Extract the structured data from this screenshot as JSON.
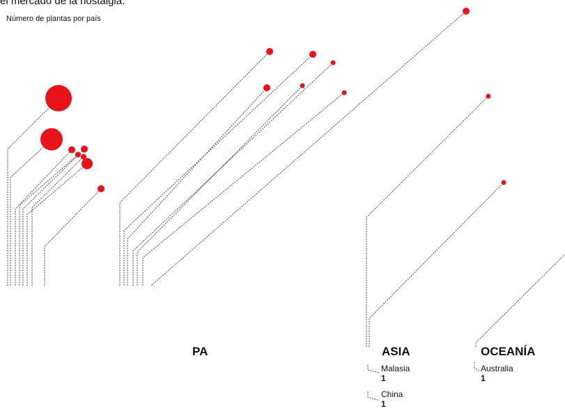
{
  "header": {
    "title": "el mercado de la nostalgia.",
    "subtitle": "Número de plantas por país"
  },
  "chart_data": {
    "type": "flow",
    "regions": [
      {
        "name": "PA",
        "countries": []
      },
      {
        "name": "ASIA",
        "countries": [
          {
            "name": "Malasia",
            "value": 1
          },
          {
            "name": "China",
            "value": 1
          }
        ]
      },
      {
        "name": "OCEANÍA",
        "countries": [
          {
            "name": "Australia",
            "value": 1
          }
        ]
      }
    ]
  },
  "colors": {
    "dot": "#e8141a",
    "line": "#3c4858",
    "label": "#111111"
  }
}
